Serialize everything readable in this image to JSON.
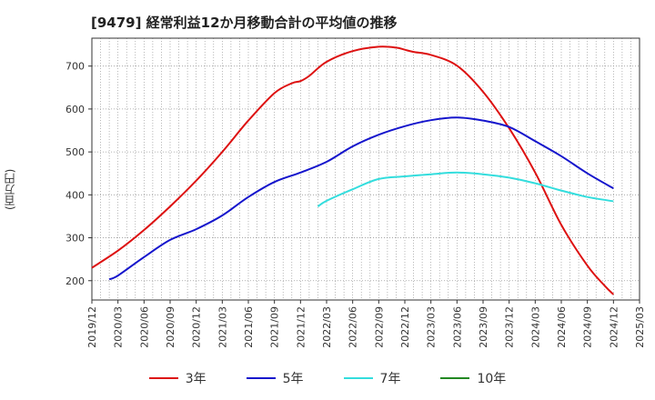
{
  "chart_data": {
    "type": "line",
    "title": "[9479]  経常利益12か月移動合計の平均値の推移",
    "ylabel": "(百万円)",
    "xlabel": "",
    "ylim": [
      155,
      765
    ],
    "yticks": [
      200,
      300,
      400,
      500,
      600,
      700
    ],
    "xticks": [
      "2019/12",
      "2020/03",
      "2020/06",
      "2020/09",
      "2020/12",
      "2021/03",
      "2021/06",
      "2021/09",
      "2021/12",
      "2022/03",
      "2022/06",
      "2022/09",
      "2022/12",
      "2023/03",
      "2023/06",
      "2023/09",
      "2023/12",
      "2024/03",
      "2024/06",
      "2024/09",
      "2024/12",
      "2025/03"
    ],
    "grid": true,
    "legend_position": "bottom",
    "series": [
      {
        "name": "3年",
        "color": "#dd1111",
        "x": [
          "2019/12",
          "2020/03",
          "2020/06",
          "2020/09",
          "2020/12",
          "2021/03",
          "2021/06",
          "2021/09",
          "2021/11",
          "2021/12",
          "2022/01",
          "2022/03",
          "2022/06",
          "2022/09",
          "2022/11",
          "2022/12",
          "2023/01",
          "2023/03",
          "2023/06",
          "2023/09",
          "2023/12",
          "2024/03",
          "2024/06",
          "2024/09",
          "2024/11",
          "2024/12"
        ],
        "values": [
          230,
          270,
          318,
          373,
          433,
          500,
          573,
          637,
          660,
          665,
          677,
          710,
          735,
          745,
          743,
          738,
          733,
          726,
          701,
          640,
          555,
          452,
          330,
          235,
          188,
          168
        ]
      },
      {
        "name": "5年",
        "color": "#1515cc",
        "x": [
          "2020/02",
          "2020/03",
          "2020/06",
          "2020/09",
          "2020/12",
          "2021/03",
          "2021/06",
          "2021/09",
          "2021/12",
          "2022/03",
          "2022/06",
          "2022/09",
          "2022/12",
          "2023/03",
          "2023/06",
          "2023/09",
          "2023/12",
          "2024/03",
          "2024/06",
          "2024/09",
          "2024/12"
        ],
        "values": [
          203,
          212,
          255,
          295,
          320,
          352,
          395,
          430,
          452,
          477,
          513,
          540,
          560,
          574,
          580,
          573,
          558,
          525,
          490,
          450,
          415
        ]
      },
      {
        "name": "7年",
        "color": "#33dddd",
        "x": [
          "2022/02",
          "2022/03",
          "2022/06",
          "2022/09",
          "2022/12",
          "2023/03",
          "2023/06",
          "2023/09",
          "2023/12",
          "2024/03",
          "2024/06",
          "2024/09",
          "2024/12"
        ],
        "values": [
          373,
          386,
          413,
          437,
          443,
          448,
          452,
          448,
          440,
          427,
          410,
          395,
          385
        ]
      },
      {
        "name": "10年",
        "color": "#228822",
        "x": [],
        "values": []
      }
    ]
  }
}
